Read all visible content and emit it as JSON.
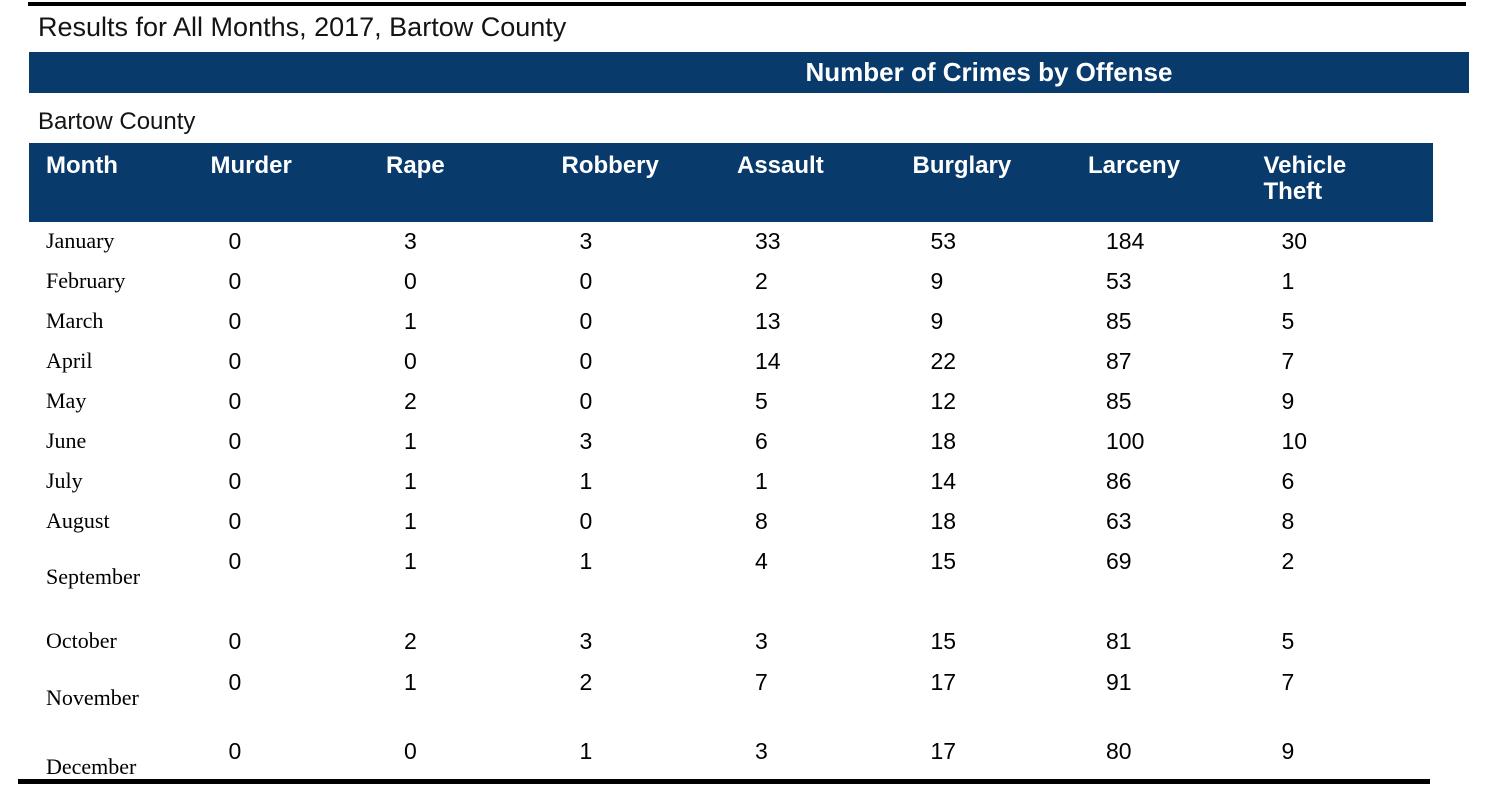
{
  "page": {
    "title": "Results for All Months, 2017, Bartow County",
    "banner": "Number of Crimes by Offense",
    "subtitle": "Bartow County"
  },
  "colors": {
    "navy_header": "#083a6c",
    "banner_text": "#ffffff",
    "body_text": "#000000"
  },
  "chart_data": {
    "type": "table",
    "title": "Number of Crimes by Offense",
    "columns": [
      "Month",
      "Murder",
      "Rape",
      "Robbery",
      "Assault",
      "Burglary",
      "Larceny",
      "Vehicle Theft"
    ],
    "rows": [
      {
        "month": "January",
        "values": [
          0,
          3,
          3,
          33,
          53,
          184,
          30
        ]
      },
      {
        "month": "February",
        "values": [
          0,
          0,
          0,
          2,
          9,
          53,
          1
        ]
      },
      {
        "month": "March",
        "values": [
          0,
          1,
          0,
          13,
          9,
          85,
          5
        ]
      },
      {
        "month": "April",
        "values": [
          0,
          0,
          0,
          14,
          22,
          87,
          7
        ]
      },
      {
        "month": "May",
        "values": [
          0,
          2,
          0,
          5,
          12,
          85,
          9
        ]
      },
      {
        "month": "June",
        "values": [
          0,
          1,
          3,
          6,
          18,
          100,
          10
        ]
      },
      {
        "month": "July",
        "values": [
          0,
          1,
          1,
          1,
          14,
          86,
          6
        ]
      },
      {
        "month": "August",
        "values": [
          0,
          1,
          0,
          8,
          18,
          63,
          8
        ]
      },
      {
        "month": "September",
        "values": [
          0,
          1,
          1,
          4,
          15,
          69,
          2
        ]
      },
      {
        "month": "October",
        "values": [
          0,
          2,
          3,
          3,
          15,
          81,
          5
        ]
      },
      {
        "month": "November",
        "values": [
          0,
          1,
          2,
          7,
          17,
          91,
          7
        ]
      },
      {
        "month": "December",
        "values": [
          0,
          0,
          1,
          3,
          17,
          80,
          9
        ]
      }
    ]
  }
}
